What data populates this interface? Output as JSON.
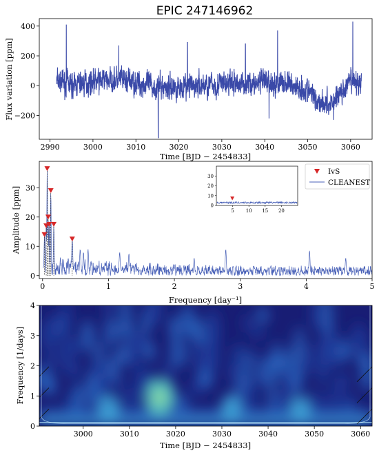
{
  "figure_title": "EPIC 247146962",
  "chart_data": [
    {
      "type": "line",
      "panel": "light-curve",
      "xlabel": "Time [BJD − 2454833]",
      "ylabel": "Flux variation [ppm]",
      "xlim": [
        2987.5,
        3065
      ],
      "ylim": [
        -360,
        450
      ],
      "xticks": [
        2990,
        3000,
        3010,
        3020,
        3030,
        3040,
        3050,
        3060
      ],
      "yticks": [
        -200,
        0,
        200,
        400
      ],
      "data_span": [
        2991.5,
        3062.5
      ],
      "color": "#3a49a8",
      "trend": {
        "x": [
          2991.5,
          2995,
          3000,
          3005,
          3010,
          3015,
          3020,
          3025,
          3030,
          3035,
          3040,
          3045,
          3050,
          3052,
          3055,
          3058,
          3060,
          3062.5
        ],
        "y": [
          30,
          0,
          30,
          40,
          20,
          -10,
          -10,
          0,
          10,
          15,
          20,
          15,
          -30,
          -90,
          -130,
          -40,
          20,
          20
        ]
      },
      "noise_amplitude": 75,
      "spikes": [
        {
          "x": 2993.8,
          "y": 410
        },
        {
          "x": 3015.2,
          "y": -350
        },
        {
          "x": 3043.0,
          "y": 370
        },
        {
          "x": 3060.5,
          "y": 430
        },
        {
          "x": 3022.0,
          "y": 290
        },
        {
          "x": 3006.0,
          "y": 270
        },
        {
          "x": 3035.5,
          "y": 280
        },
        {
          "x": 3041.0,
          "y": -220
        },
        {
          "x": 3056.0,
          "y": -230
        }
      ]
    },
    {
      "type": "line",
      "panel": "periodogram",
      "xlabel": "Frequency [day⁻¹]",
      "ylabel": "Amplitude [ppm]",
      "xlim": [
        -0.05,
        5
      ],
      "ylim": [
        -1,
        39
      ],
      "xticks": [
        0,
        1,
        2,
        3,
        4,
        5
      ],
      "yticks": [
        0,
        10,
        20,
        30
      ],
      "legend_position": "top-right",
      "series": [
        {
          "name": "IvS",
          "type": "scatter",
          "marker": "triangle-down",
          "color": "#d62728",
          "x": [
            0.028,
            0.055,
            0.07,
            0.085,
            0.1,
            0.125,
            0.17,
            0.45
          ],
          "y": [
            14,
            17,
            36.5,
            20,
            17.5,
            29,
            17.5,
            12.5
          ]
        },
        {
          "name": "CLEANEST",
          "type": "line",
          "color": "#4a62b8",
          "peaks": {
            "x": [
              0.028,
              0.055,
              0.07,
              0.085,
              0.1,
              0.125,
              0.17,
              0.45,
              0.57,
              0.62,
              0.69,
              1.17,
              1.31,
              2.78,
              2.3,
              4.05,
              4.6
            ],
            "y": [
              14,
              17,
              36.5,
              20,
              17.5,
              29,
              17.5,
              12.5,
              9,
              8,
              9,
              8,
              7.5,
              9,
              6,
              8.5,
              6
            ]
          }
        }
      ],
      "inset": {
        "xlim": [
          0,
          25
        ],
        "ylim": [
          0,
          40
        ],
        "xticks": [
          5,
          10,
          15,
          20
        ],
        "yticks": [
          0,
          10,
          20,
          30
        ],
        "marker": {
          "x": 4.9,
          "y": 7
        }
      }
    },
    {
      "type": "heatmap",
      "panel": "wavelet",
      "xlabel": "Time [BJD − 2454833]",
      "ylabel": "Frequency [1/days]",
      "xlim": [
        2990.5,
        3062.5
      ],
      "ylim": [
        0,
        4
      ],
      "xticks": [
        3000,
        3010,
        3020,
        3030,
        3040,
        3050,
        3060
      ],
      "yticks": [
        0,
        1,
        2,
        3,
        4
      ],
      "colormap": [
        "#14196e",
        "#1f3c9c",
        "#2c6bc4",
        "#3fa3d6",
        "#5dd0c2",
        "#a8e27c"
      ],
      "hotspots": [
        {
          "t": 3016.5,
          "f": 0.95,
          "level": 1.0
        },
        {
          "t": 3005.5,
          "f": 0.55,
          "level": 0.45
        },
        {
          "t": 3032.0,
          "f": 0.6,
          "level": 0.35
        },
        {
          "t": 3047.0,
          "f": 0.55,
          "level": 0.35
        }
      ]
    }
  ]
}
